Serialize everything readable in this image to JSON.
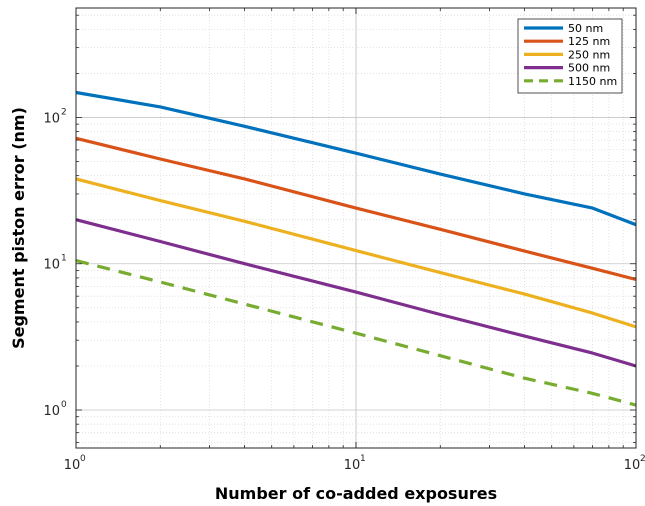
{
  "chart_data": {
    "type": "line",
    "title": "",
    "xlabel": "Number of co-added exposures",
    "ylabel": "Segment piston error (nm)",
    "xscale": "log",
    "yscale": "log",
    "xlim": [
      1,
      100
    ],
    "ylim": [
      0.55,
      560
    ],
    "grid": true,
    "minor_grid": true,
    "legend_position": "top-right",
    "x_tick_labels": [
      {
        "value": 1,
        "base": "10",
        "exp": "0"
      },
      {
        "value": 10,
        "base": "10",
        "exp": "1"
      },
      {
        "value": 100,
        "base": "10",
        "exp": "2"
      }
    ],
    "y_tick_labels": [
      {
        "value": 1,
        "base": "10",
        "exp": "0"
      },
      {
        "value": 10,
        "base": "10",
        "exp": "1"
      },
      {
        "value": 100,
        "base": "10",
        "exp": "2"
      }
    ],
    "series": [
      {
        "name": "50 nm",
        "color": "#0072BD",
        "dash": "solid",
        "x": [
          1,
          2,
          4,
          10,
          20,
          40,
          70,
          100
        ],
        "y": [
          148,
          118,
          87,
          57,
          41,
          30,
          24,
          18.5
        ]
      },
      {
        "name": "125 nm",
        "color": "#D95319",
        "dash": "solid",
        "x": [
          1,
          2,
          4,
          10,
          20,
          40,
          70,
          100
        ],
        "y": [
          72,
          52,
          38,
          24,
          17.2,
          12.2,
          9.3,
          7.8
        ]
      },
      {
        "name": "250 nm",
        "color": "#EDB120",
        "dash": "solid",
        "x": [
          1,
          2,
          4,
          10,
          20,
          40,
          70,
          100
        ],
        "y": [
          38,
          27,
          19.5,
          12.3,
          8.7,
          6.2,
          4.6,
          3.7
        ]
      },
      {
        "name": "500 nm",
        "color": "#7E2F8E",
        "dash": "solid",
        "x": [
          1,
          2,
          4,
          10,
          20,
          40,
          70,
          100
        ],
        "y": [
          20,
          14.2,
          10,
          6.4,
          4.5,
          3.2,
          2.45,
          2.0
        ]
      },
      {
        "name": "1150 nm",
        "color": "#77AC30",
        "dash": "dashed",
        "x": [
          1,
          2,
          4,
          10,
          20,
          40,
          70,
          100
        ],
        "y": [
          10.5,
          7.5,
          5.3,
          3.35,
          2.35,
          1.65,
          1.3,
          1.08
        ]
      }
    ]
  }
}
